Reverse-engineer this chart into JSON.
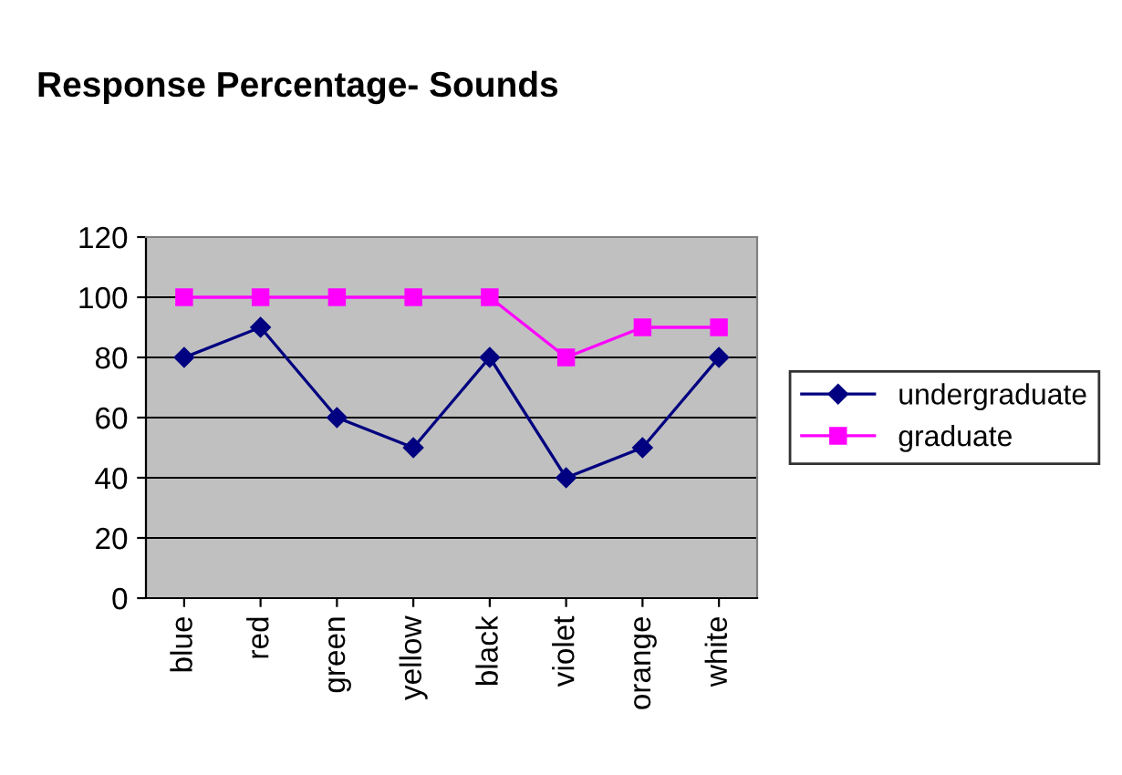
{
  "chart_data": {
    "type": "line",
    "title": "Response Percentage- Sounds",
    "categories": [
      "blue",
      "red",
      "green",
      "yellow",
      "black",
      "violet",
      "orange",
      "white"
    ],
    "series": [
      {
        "name": "undergraduate",
        "color": "#000080",
        "marker": "diamond",
        "values": [
          80,
          90,
          60,
          50,
          80,
          40,
          50,
          80
        ]
      },
      {
        "name": "graduate",
        "color": "#ff00ff",
        "marker": "square",
        "values": [
          100,
          100,
          100,
          100,
          100,
          80,
          90,
          90
        ]
      }
    ],
    "ylim": [
      0,
      120
    ],
    "yticks": [
      0,
      20,
      40,
      60,
      80,
      100,
      120
    ],
    "grid": "y",
    "legend": "right",
    "line_style": "solid"
  }
}
